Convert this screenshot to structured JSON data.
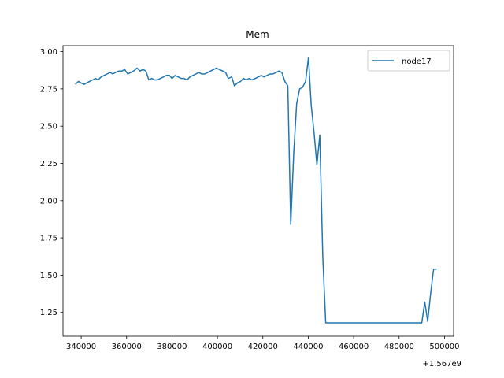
{
  "chart_data": {
    "type": "line",
    "title": "Mem",
    "xlabel": "",
    "ylabel": "",
    "x_offset_label": "+1.567e9",
    "xlim": [
      332000,
      504000
    ],
    "ylim": [
      1.09,
      3.04
    ],
    "xticks": [
      340000,
      360000,
      380000,
      400000,
      420000,
      440000,
      460000,
      480000,
      500000
    ],
    "yticks": [
      1.25,
      1.5,
      1.75,
      2.0,
      2.25,
      2.5,
      2.75,
      3.0
    ],
    "xtick_labels": [
      "340000",
      "360000",
      "380000",
      "400000",
      "420000",
      "440000",
      "460000",
      "480000",
      "500000"
    ],
    "ytick_labels": [
      "1.25",
      "1.50",
      "1.75",
      "2.00",
      "2.25",
      "2.50",
      "2.75",
      "3.00"
    ],
    "grid": false,
    "legend_position": "top-right",
    "series": [
      {
        "name": "node17",
        "color": "#1f77b4",
        "x": [
          337400,
          338800,
          339900,
          341300,
          342400,
          343700,
          345100,
          346300,
          347500,
          348800,
          350100,
          351400,
          352700,
          353900,
          355100,
          356600,
          357900,
          359200,
          360500,
          361800,
          363100,
          364600,
          365900,
          367200,
          368500,
          369800,
          371100,
          372300,
          373600,
          374900,
          376300,
          377500,
          378900,
          380000,
          381400,
          382700,
          384000,
          385300,
          386600,
          387900,
          389200,
          390500,
          391800,
          393100,
          394400,
          395700,
          397000,
          398300,
          399600,
          400900,
          402300,
          403600,
          404800,
          406300,
          407500,
          408800,
          410200,
          411400,
          412700,
          414000,
          415200,
          416700,
          418000,
          419300,
          420500,
          421800,
          423100,
          424400,
          425800,
          427100,
          428400,
          429700,
          431000,
          432300,
          433600,
          434900,
          436200,
          437500,
          438800,
          440100,
          441300,
          442600,
          443800,
          445100,
          446400,
          447700,
          449000,
          450300,
          451600,
          452900,
          454200,
          455500,
          456800,
          458100,
          459400,
          470000,
          480000,
          490000,
          491300,
          492600,
          493900,
          495200,
          496500
        ],
        "y": [
          2.78,
          2.8,
          2.79,
          2.78,
          2.79,
          2.8,
          2.81,
          2.82,
          2.81,
          2.83,
          2.84,
          2.85,
          2.86,
          2.85,
          2.86,
          2.87,
          2.87,
          2.88,
          2.85,
          2.86,
          2.87,
          2.89,
          2.87,
          2.88,
          2.87,
          2.81,
          2.82,
          2.81,
          2.81,
          2.82,
          2.83,
          2.84,
          2.84,
          2.82,
          2.84,
          2.83,
          2.82,
          2.82,
          2.81,
          2.83,
          2.84,
          2.85,
          2.86,
          2.85,
          2.85,
          2.86,
          2.87,
          2.88,
          2.89,
          2.88,
          2.87,
          2.86,
          2.82,
          2.83,
          2.77,
          2.79,
          2.8,
          2.82,
          2.81,
          2.82,
          2.81,
          2.82,
          2.83,
          2.84,
          2.83,
          2.84,
          2.85,
          2.85,
          2.86,
          2.87,
          2.86,
          2.8,
          2.77,
          1.84,
          2.32,
          2.65,
          2.75,
          2.76,
          2.8,
          2.96,
          2.64,
          2.45,
          2.24,
          2.44,
          1.62,
          1.18,
          1.18,
          1.18,
          1.18,
          1.18,
          1.18,
          1.18,
          1.18,
          1.18,
          1.18,
          1.18,
          1.18,
          1.18,
          1.32,
          1.19,
          1.38,
          1.54,
          1.54
        ]
      }
    ]
  }
}
